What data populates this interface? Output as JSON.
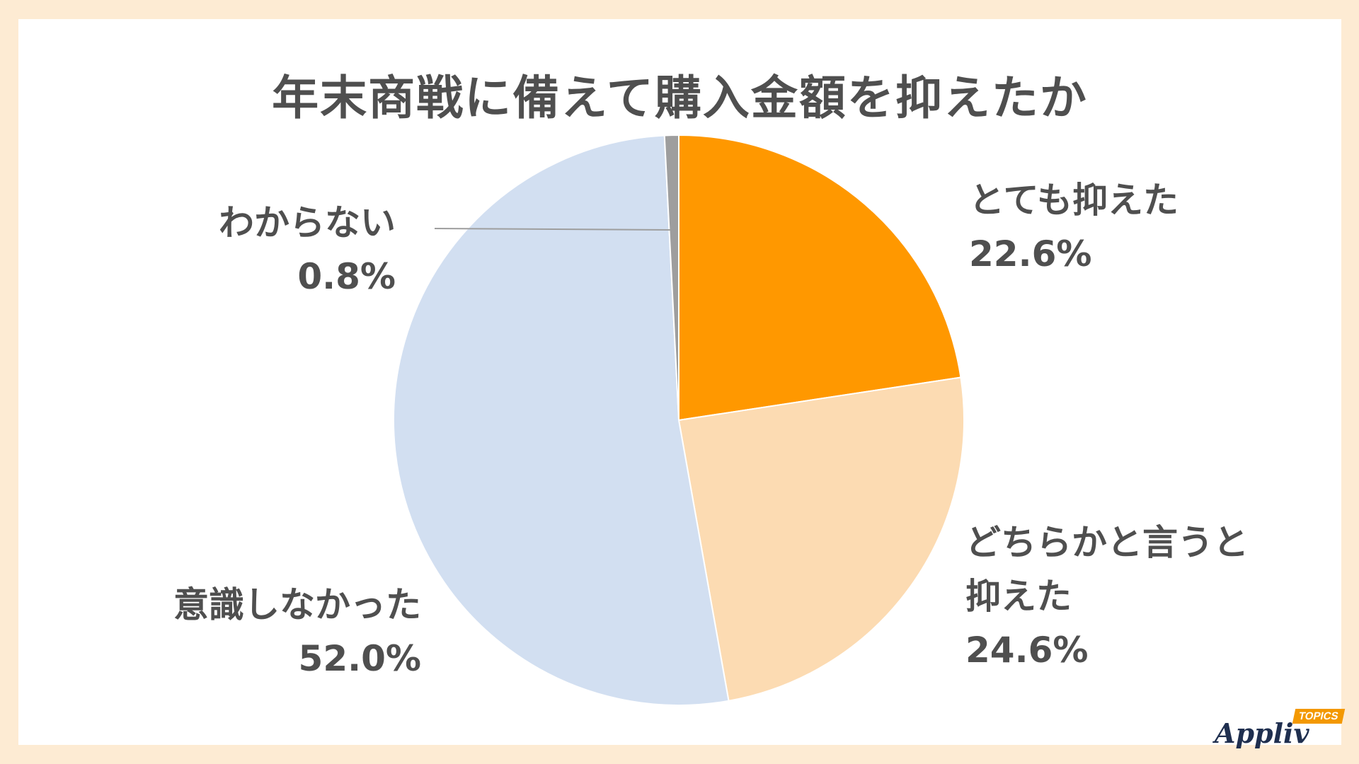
{
  "chart_data": {
    "type": "pie",
    "title": "年末商戦に備えて購入金額を抑えたか",
    "slices": [
      {
        "label_lines": [
          "とても抑えた"
        ],
        "value_label": "22.6%",
        "value": 22.6,
        "color": "#ff9800"
      },
      {
        "label_lines": [
          "どちらかと言うと",
          "抑えた"
        ],
        "value_label": "24.6%",
        "value": 24.6,
        "color": "#fcdbb2"
      },
      {
        "label_lines": [
          "意識しなかった"
        ],
        "value_label": "52.0%",
        "value": 52.0,
        "color": "#d2dff1"
      },
      {
        "label_lines": [
          "わからない"
        ],
        "value_label": "0.8%",
        "value": 0.8,
        "color": "#9e9e9e"
      }
    ]
  },
  "brand": {
    "name": "Appliv",
    "tag": "TOPICS"
  }
}
